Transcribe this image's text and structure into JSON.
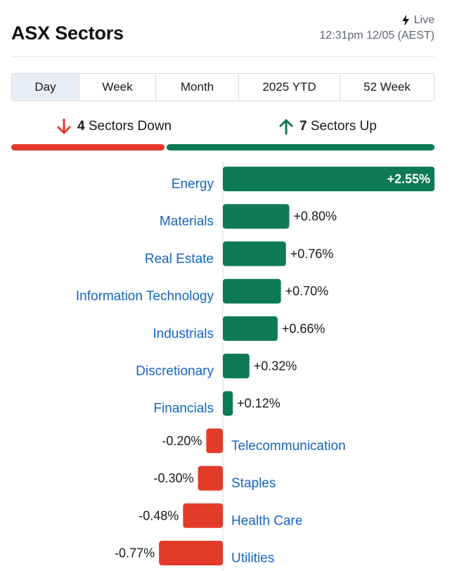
{
  "header": {
    "title": "ASX Sectors",
    "live_label": "Live",
    "timestamp": "12:31pm 12/05 (AEST)"
  },
  "tabs": [
    {
      "label": "Day",
      "active": true
    },
    {
      "label": "Week",
      "active": false
    },
    {
      "label": "Month",
      "active": false
    },
    {
      "label": "2025 YTD",
      "active": false
    },
    {
      "label": "52 Week",
      "active": false
    }
  ],
  "summary": {
    "down_count": "4",
    "down_label": "Sectors Down",
    "up_count": "7",
    "up_label": "Sectors Up"
  },
  "colors": {
    "up": "#0e7a55",
    "down": "#e23b2a",
    "label": "#1565c0"
  },
  "chart_data": {
    "type": "bar",
    "orientation": "horizontal",
    "categories": [
      "Energy",
      "Materials",
      "Real Estate",
      "Information Technology",
      "Industrials",
      "Discretionary",
      "Financials",
      "Telecommunication",
      "Staples",
      "Health Care",
      "Utilities"
    ],
    "values": [
      2.55,
      0.8,
      0.76,
      0.7,
      0.66,
      0.32,
      0.12,
      -0.2,
      -0.3,
      -0.48,
      -0.77
    ],
    "data_labels": [
      "+2.55%",
      "+0.80%",
      "+0.76%",
      "+0.70%",
      "+0.66%",
      "+0.32%",
      "+0.12%",
      "-0.20%",
      "-0.30%",
      "-0.48%",
      "-0.77%"
    ],
    "unit": "%"
  }
}
